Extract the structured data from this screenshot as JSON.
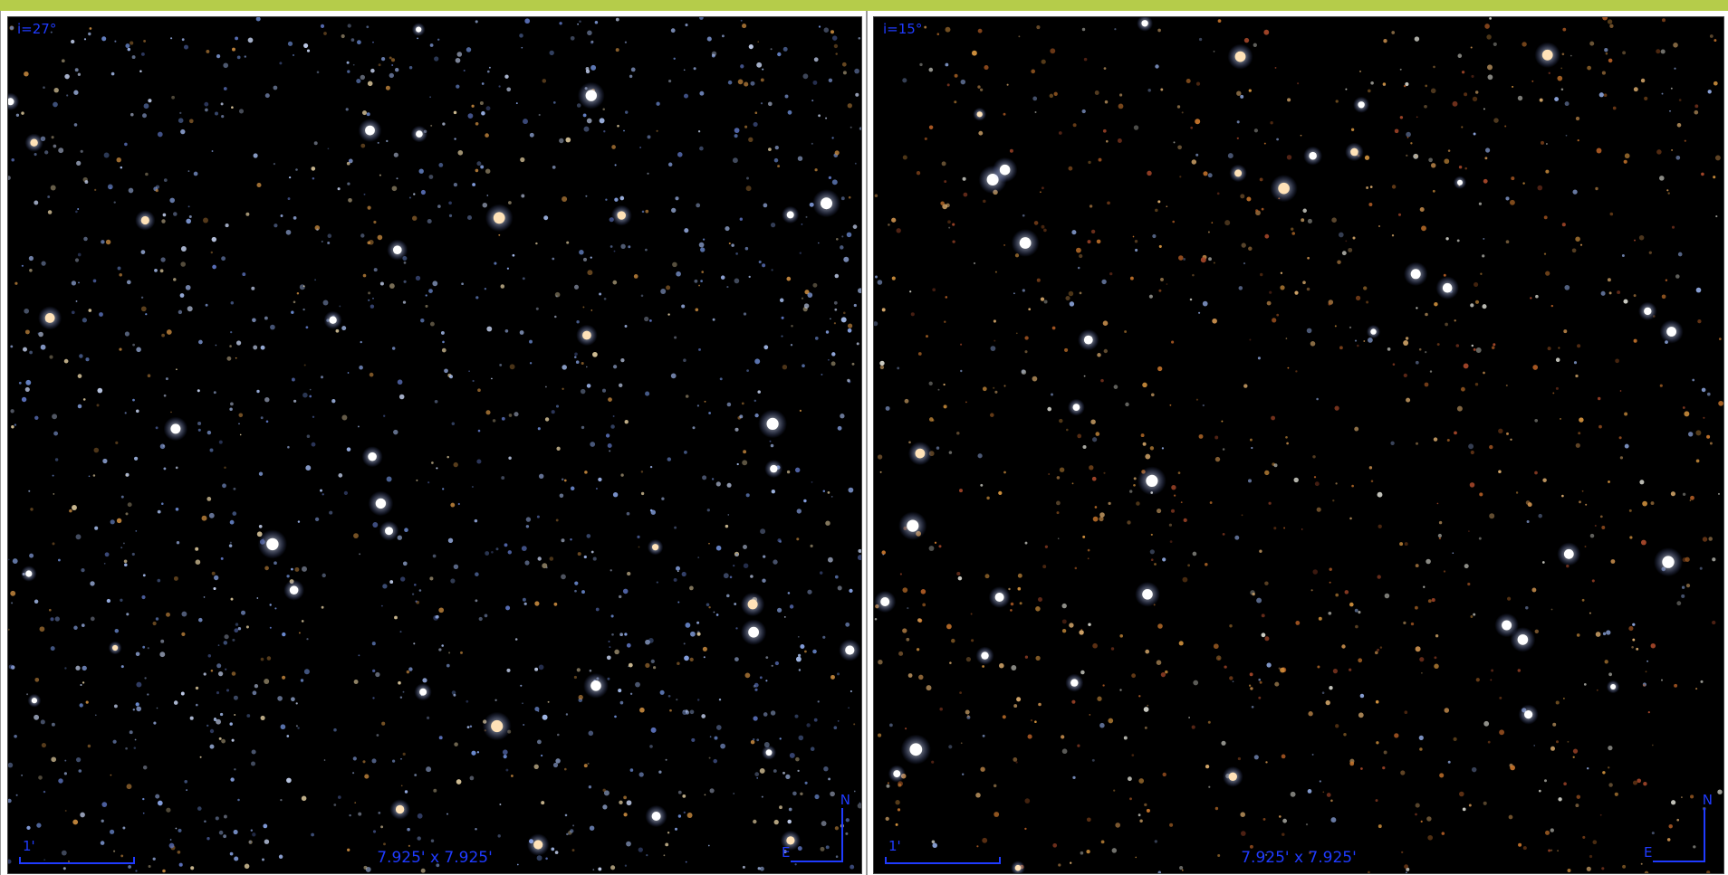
{
  "panels": [
    {
      "id": "left",
      "angle_label": "i=27°",
      "fov_label": "7.925' x 7.925'",
      "scale_label": "1'",
      "compass": {
        "north": "N",
        "east": "E"
      },
      "star_tint": "blue",
      "seed": 17
    },
    {
      "id": "right",
      "angle_label": "i=15°",
      "fov_label": "7.925' x 7.925'",
      "scale_label": "1'",
      "compass": {
        "north": "N",
        "east": "E"
      },
      "star_tint": "warm",
      "seed": 91
    }
  ],
  "colors": {
    "top_bar": "#b5cc4a",
    "overlay_text": "#1f3bff",
    "sky": "#000000"
  }
}
